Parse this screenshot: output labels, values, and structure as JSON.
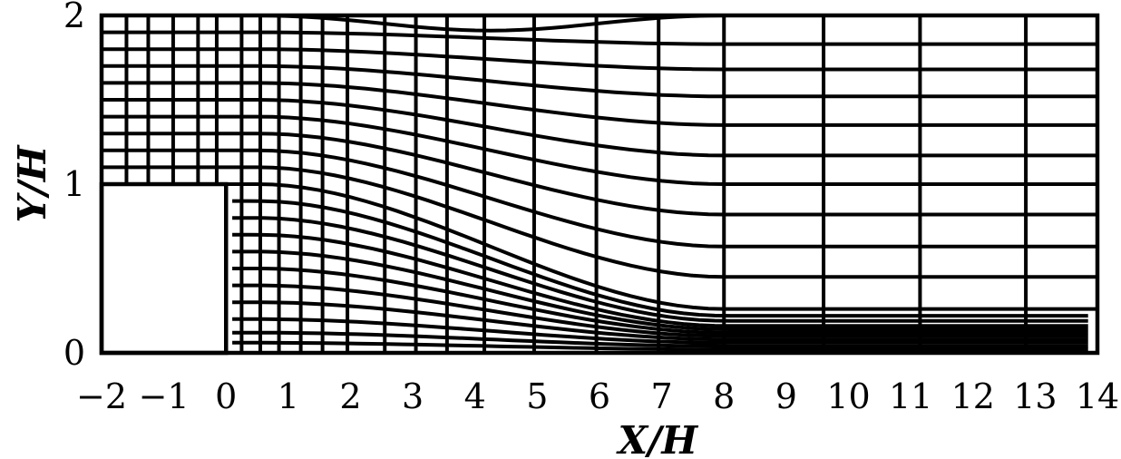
{
  "figure": {
    "x_axis_title": "X/H",
    "y_axis_title": "Y/H",
    "x_tick_labels": [
      "−2",
      "−1",
      "0",
      "1",
      "2",
      "3",
      "4",
      "5",
      "6",
      "7",
      "8",
      "9",
      "10",
      "11",
      "12",
      "13",
      "14"
    ],
    "y_tick_labels": [
      "0",
      "1",
      "2"
    ],
    "x_ticks": [
      -2,
      -1,
      0,
      1,
      2,
      3,
      4,
      5,
      6,
      7,
      8,
      9,
      10,
      11,
      12,
      13,
      14
    ],
    "y_ticks": [
      0,
      1,
      2
    ],
    "x_range": [
      -2,
      14
    ],
    "y_range": [
      0,
      2
    ],
    "obstacle": {
      "x": [
        -2,
        0
      ],
      "y": [
        0,
        1
      ]
    },
    "colors": {
      "lines": "#000000",
      "background": "#ffffff"
    }
  }
}
